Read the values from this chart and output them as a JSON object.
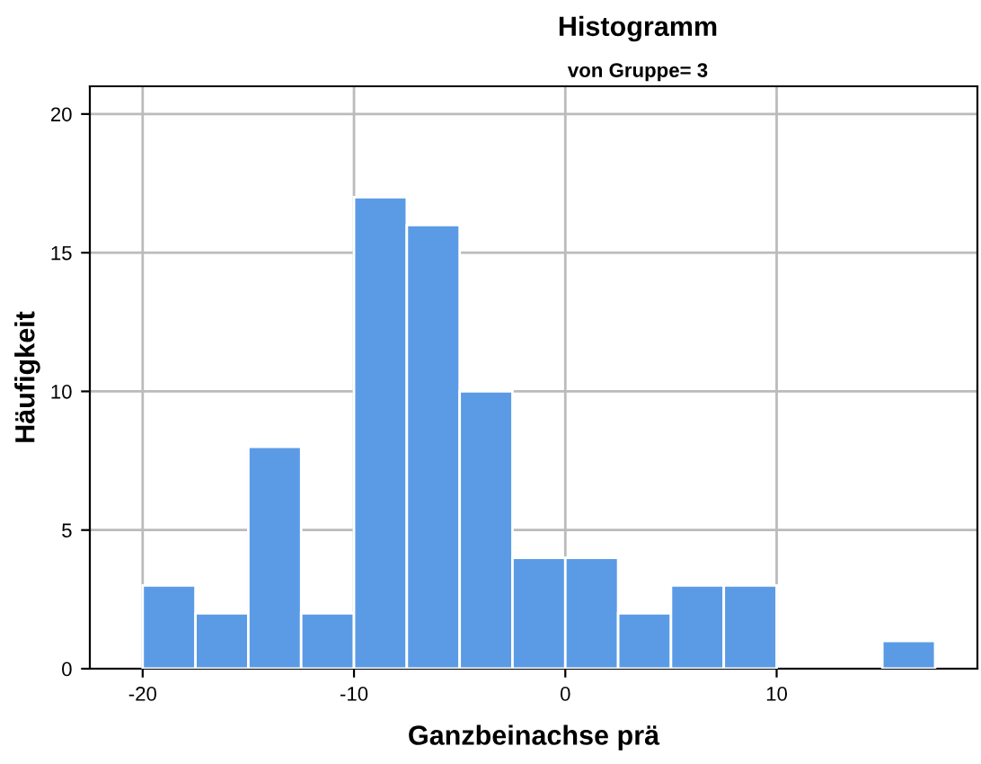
{
  "chart_data": {
    "type": "histogram",
    "title": "Histogramm",
    "subtitle": "von Gruppe= 3",
    "xlabel": "Ganzbeinachse prä",
    "ylabel": "Häufigkeit",
    "bins": [
      -20,
      -17.5,
      -15,
      -12.5,
      -10,
      -7.5,
      -5,
      -2.5,
      0,
      2.5,
      5,
      7.5,
      10,
      12.5,
      15,
      17.5
    ],
    "values": [
      3,
      2,
      8,
      2,
      17,
      16,
      10,
      4,
      4,
      2,
      3,
      3,
      0,
      0,
      1
    ],
    "color": "#5b9be6",
    "xlim": [
      -22.5,
      19.5
    ],
    "ylim": [
      0,
      21
    ],
    "xticks": [
      -20,
      -10,
      0,
      10
    ],
    "yticks": [
      0,
      5,
      10,
      15,
      20
    ],
    "grid": true
  }
}
